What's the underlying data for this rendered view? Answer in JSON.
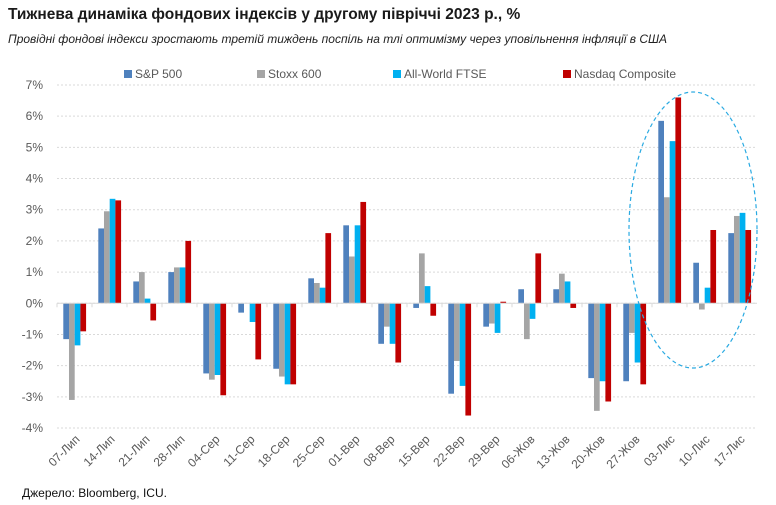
{
  "chart_data": {
    "type": "bar",
    "title": "Тижнева динаміка фондових індексів у другому півріччі 2023 р., %",
    "subtitle": "Провідні фондові індекси зростають третій тиждень поспіль на тлі оптимізму через уповільнення інфляції в США",
    "source": "Джерело: Bloomberg, ICU.",
    "categories": [
      "07-Лип",
      "14-Лип",
      "21-Лип",
      "28-Лип",
      "04-Сер",
      "11-Сер",
      "18-Сер",
      "25-Сер",
      "01-Вер",
      "08-Вер",
      "15-Вер",
      "22-Вер",
      "29-Вер",
      "06-Жов",
      "13-Жов",
      "20-Жов",
      "27-Жов",
      "03-Лис",
      "10-Лис",
      "17-Лис"
    ],
    "series": [
      {
        "name": "S&P 500",
        "color": "#4f81bd",
        "values": [
          -1.15,
          2.4,
          0.7,
          1.0,
          -2.25,
          -0.3,
          -2.1,
          0.8,
          2.5,
          -1.3,
          -0.15,
          -2.9,
          -0.75,
          0.45,
          0.45,
          -2.4,
          -2.5,
          5.85,
          1.3,
          2.25
        ]
      },
      {
        "name": "Stoxx 600",
        "color": "#a5a5a5",
        "values": [
          -3.1,
          2.95,
          1.0,
          1.15,
          -2.45,
          0,
          -2.35,
          0.65,
          1.5,
          -0.75,
          1.6,
          -1.85,
          -0.65,
          -1.15,
          0.95,
          -3.45,
          -0.95,
          3.4,
          -0.2,
          2.8
        ]
      },
      {
        "name": "All-World FTSE",
        "color": "#00b0f0",
        "values": [
          -1.35,
          3.35,
          0.15,
          1.15,
          -2.3,
          -0.6,
          -2.6,
          0.5,
          2.5,
          -1.3,
          0.55,
          -2.65,
          -0.95,
          -0.5,
          0.7,
          -2.5,
          -1.9,
          5.2,
          0.5,
          2.9
        ]
      },
      {
        "name": "Nasdaq Composite",
        "color": "#c00000",
        "values": [
          -0.9,
          3.3,
          -0.55,
          2.0,
          -2.95,
          -1.8,
          -2.6,
          2.25,
          3.25,
          -1.9,
          -0.4,
          -3.6,
          0.05,
          1.6,
          -0.15,
          -3.15,
          -2.6,
          6.6,
          2.35,
          2.35
        ]
      }
    ],
    "ylim": [
      -4,
      7
    ],
    "yticks": [
      "-4%",
      "-3%",
      "-2%",
      "-1%",
      "0%",
      "1%",
      "2%",
      "3%",
      "4%",
      "5%",
      "6%",
      "7%"
    ],
    "grid": true,
    "legend": "top",
    "highlight": "dashed ellipse around 03-Лис to 17-Лис"
  }
}
